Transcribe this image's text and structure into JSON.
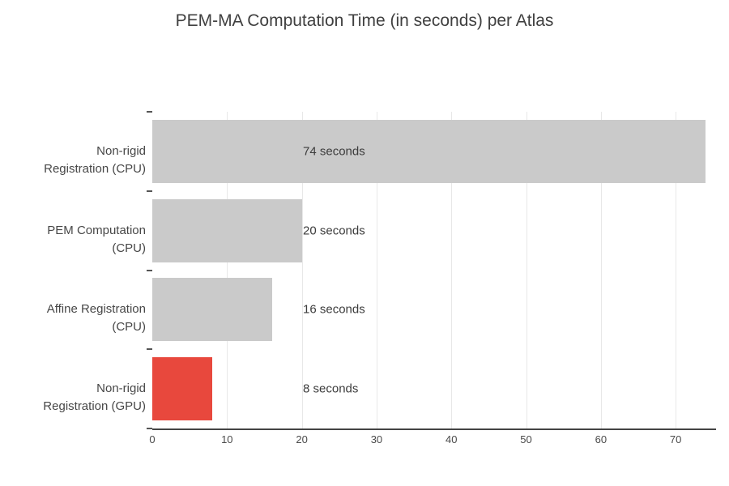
{
  "chart_data": {
    "type": "bar",
    "orientation": "horizontal",
    "title": "PEM-MA Computation Time (in seconds) per Atlas",
    "categories": [
      "Non-rigid Registration (CPU)",
      "PEM Computation (CPU)",
      "Affine Registration (CPU)",
      "Non-rigid Registration (GPU)"
    ],
    "category_label_lines": [
      [
        "Non-rigid",
        "Registration (CPU)"
      ],
      [
        "PEM Computation",
        "(CPU)"
      ],
      [
        "Affine Registration",
        "(CPU)"
      ],
      [
        "Non-rigid",
        "Registration (GPU)"
      ]
    ],
    "values": [
      74,
      20,
      16,
      8
    ],
    "bar_labels": [
      "74 seconds",
      "20 seconds",
      "16 seconds",
      "8 seconds"
    ],
    "bar_colors": [
      "#cacaca",
      "#cacaca",
      "#cacaca",
      "#e8483d"
    ],
    "xlabel": "",
    "ylabel": "",
    "xlim": [
      0,
      75.4
    ],
    "x_ticks": [
      0,
      10,
      20,
      30,
      40,
      50,
      60,
      70
    ],
    "grid": true,
    "legend_visible": false
  },
  "colors": {
    "bar_default": "#cacaca",
    "bar_highlight": "#e8483d",
    "gridline": "#e8e8e8",
    "axis_line": "#444444",
    "tick_mark": "#555555",
    "title_text": "#404040",
    "label_text": "#474747",
    "value_text": "#3c3c3c"
  }
}
